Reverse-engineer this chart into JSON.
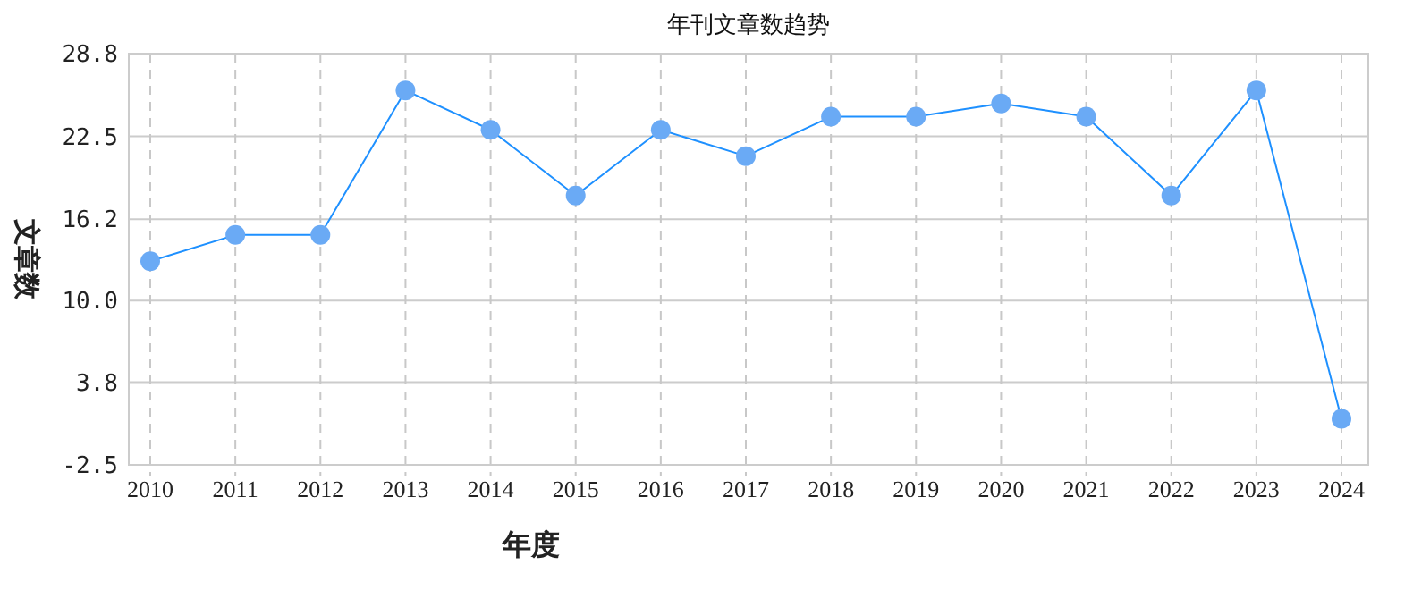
{
  "chart_data": {
    "type": "line",
    "title": "年刊文章数趋势",
    "xlabel": "年度",
    "ylabel": "文章数",
    "categories": [
      "2010",
      "2011",
      "2012",
      "2013",
      "2014",
      "2015",
      "2016",
      "2017",
      "2018",
      "2019",
      "2020",
      "2021",
      "2022",
      "2023",
      "2024"
    ],
    "series": [
      {
        "color": "#1e90ff",
        "values": [
          13,
          15,
          15,
          26,
          23,
          18,
          23,
          21,
          24,
          24,
          25,
          24,
          18,
          26,
          1
        ]
      }
    ],
    "ylim": [
      -2.5,
      28.8
    ],
    "yticks": [
      -2.5,
      3.8,
      {
        "value": 10,
        "label": "10.0"
      },
      16.2,
      22.5,
      28.8
    ],
    "grid": true,
    "marker": "circle",
    "line_style": "solid"
  }
}
